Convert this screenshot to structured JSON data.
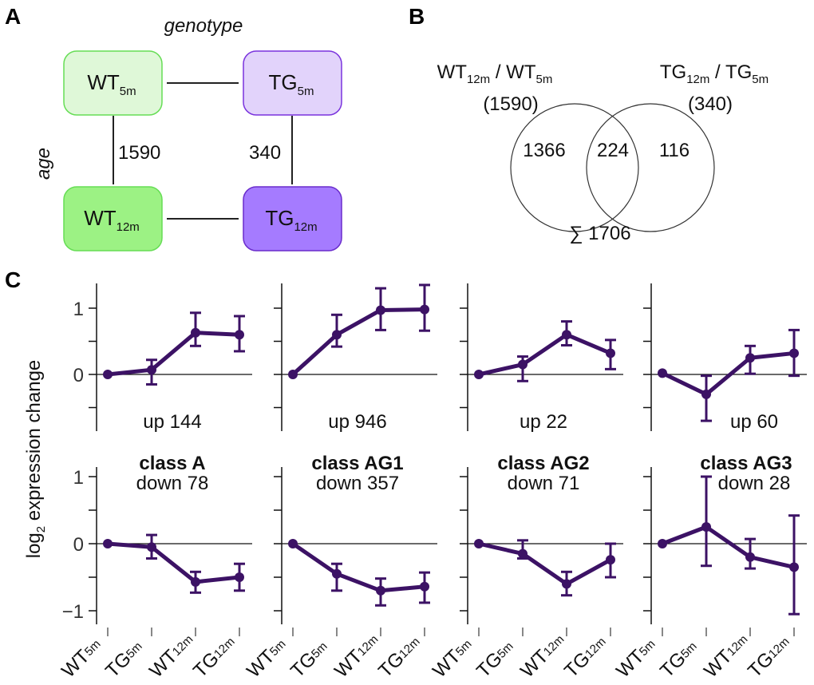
{
  "panels": {
    "a": "A",
    "b": "B",
    "c": "C"
  },
  "panel_a": {
    "genotype_label": "genotype",
    "age_label": "age",
    "boxes": [
      {
        "main": "WT",
        "sub": "5m",
        "fill": "#dff8d8",
        "stroke": "#66dd55",
        "text": "#111"
      },
      {
        "main": "TG",
        "sub": "5m",
        "fill": "#e2d3fb",
        "stroke": "#7a33dd",
        "text": "#111"
      },
      {
        "main": "WT",
        "sub": "12m",
        "fill": "#9cf284",
        "stroke": "#66dd55",
        "text": "#111"
      },
      {
        "main": "TG",
        "sub": "12m",
        "fill": "#a57bff",
        "stroke": "#6a2ccc",
        "text": "#111"
      }
    ],
    "wt_age_count": "1590",
    "tg_age_count": "340"
  },
  "panel_b": {
    "left_title": {
      "a": "WT",
      "as": "12m",
      "sep": " / ",
      "b": "WT",
      "bs": "5m"
    },
    "right_title": {
      "a": "TG",
      "as": "12m",
      "sep": " / ",
      "b": "TG",
      "bs": "5m"
    },
    "left_total": "(1590)",
    "right_total": "(340)",
    "left_only": "1366",
    "overlap": "224",
    "right_only": "116",
    "sum": "∑ 1706"
  },
  "chart_data": {
    "type": "line",
    "ylabel": "log",
    "ylabel_sub": "2",
    "ylabel_rest": " expression change",
    "categories": [
      {
        "m": "WT",
        "s": "5m"
      },
      {
        "m": "TG",
        "s": "5m"
      },
      {
        "m": "WT",
        "s": "12m"
      },
      {
        "m": "TG",
        "s": "12m"
      }
    ],
    "color": "#3c1265",
    "classes": [
      "class A",
      "class AG1",
      "class AG2",
      "class AG3"
    ],
    "up": {
      "labels": [
        "up 144",
        "up 946",
        "up 22",
        "up 60"
      ],
      "yticks": [
        -0.5,
        0,
        0.5,
        1
      ],
      "ytick_labels": [
        "1",
        "0"
      ],
      "series": [
        {
          "y": [
            0,
            0.07,
            0.63,
            0.6
          ],
          "lo": [
            0,
            -0.15,
            0.43,
            0.35
          ],
          "hi": [
            0,
            0.22,
            0.93,
            0.88
          ]
        },
        {
          "y": [
            0,
            0.6,
            0.97,
            0.98
          ],
          "lo": [
            0,
            0.42,
            0.67,
            0.66
          ],
          "hi": [
            0,
            0.9,
            1.3,
            1.35
          ]
        },
        {
          "y": [
            0,
            0.15,
            0.6,
            0.32
          ],
          "lo": [
            0,
            -0.1,
            0.44,
            0.08
          ],
          "hi": [
            0,
            0.27,
            0.8,
            0.52
          ]
        },
        {
          "y": [
            0.02,
            -0.3,
            0.25,
            0.32
          ],
          "lo": [
            0.02,
            -0.7,
            0.01,
            -0.02
          ],
          "hi": [
            0.02,
            -0.02,
            0.43,
            0.67
          ]
        }
      ]
    },
    "down": {
      "labels": [
        "down 78",
        "down 357",
        "down 71",
        "down 28"
      ],
      "yticks": [
        -1,
        -0.5,
        0,
        0.5,
        1
      ],
      "ytick_labels": [
        "1",
        "0",
        "−1"
      ],
      "series": [
        {
          "y": [
            0,
            -0.05,
            -0.57,
            -0.5
          ],
          "lo": [
            0,
            -0.22,
            -0.73,
            -0.7
          ],
          "hi": [
            0,
            0.13,
            -0.42,
            -0.3
          ]
        },
        {
          "y": [
            0,
            -0.45,
            -0.7,
            -0.64
          ],
          "lo": [
            0,
            -0.7,
            -0.92,
            -0.88
          ],
          "hi": [
            0,
            -0.3,
            -0.52,
            -0.43
          ]
        },
        {
          "y": [
            0,
            -0.15,
            -0.6,
            -0.24
          ],
          "lo": [
            0,
            -0.22,
            -0.77,
            -0.5
          ],
          "hi": [
            0,
            0.05,
            -0.42,
            0
          ]
        },
        {
          "y": [
            0,
            0.25,
            -0.2,
            -0.35
          ],
          "lo": [
            0,
            -0.33,
            -0.37,
            -1.05
          ],
          "hi": [
            0,
            1.0,
            0.07,
            0.42
          ]
        }
      ]
    }
  }
}
